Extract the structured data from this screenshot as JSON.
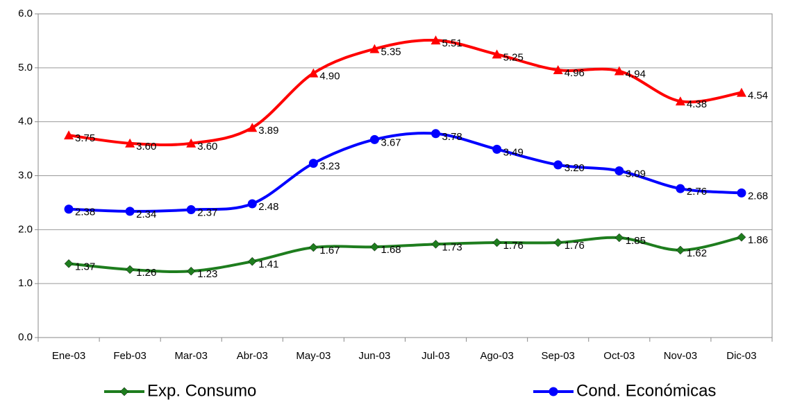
{
  "chart_data": {
    "type": "line",
    "categories": [
      "Ene-03",
      "Feb-03",
      "Mar-03",
      "Abr-03",
      "May-03",
      "Jun-03",
      "Jul-03",
      "Ago-03",
      "Sep-03",
      "Oct-03",
      "Nov-03",
      "Dic-03"
    ],
    "series": [
      {
        "name": "Exp. Consumo",
        "color": "#1e7d1e",
        "marker": "diamond",
        "values": [
          1.37,
          1.26,
          1.23,
          1.41,
          1.67,
          1.68,
          1.73,
          1.76,
          1.76,
          1.85,
          1.62,
          1.86
        ],
        "value_labels": [
          "1.37",
          "1.26",
          "1.23",
          "1.41",
          "1.67",
          "1.68",
          "1.73",
          "1.76",
          "1.76",
          "1.85",
          "1.62",
          "1.86"
        ]
      },
      {
        "name": "Cond. Económicas",
        "color": "#0000ff",
        "marker": "circle",
        "values": [
          2.38,
          2.34,
          2.37,
          2.48,
          3.23,
          3.67,
          3.78,
          3.49,
          3.2,
          3.09,
          2.76,
          2.68
        ],
        "value_labels": [
          "2.38",
          "2.34",
          "2.37",
          "2.48",
          "3.23",
          "3.67",
          "3.78",
          "3.49",
          "3.20",
          "3.09",
          "2.76",
          "2.68"
        ]
      },
      {
        "color": "#ff0000",
        "marker": "triangle",
        "values": [
          3.75,
          3.6,
          3.6,
          3.89,
          4.9,
          5.35,
          5.51,
          5.25,
          4.96,
          4.94,
          4.38,
          4.54
        ],
        "value_labels": [
          "3.75",
          "3.60",
          "3.60",
          "3.89",
          "4.90",
          "5.35",
          "5.51",
          "5.25",
          "4.96",
          "4.94",
          "4.38",
          "4.54"
        ]
      }
    ],
    "ylim": [
      0,
      6
    ],
    "yticks": [
      {
        "value": 0,
        "label": "0.0"
      },
      {
        "value": 1,
        "label": "1.0"
      },
      {
        "value": 2,
        "label": "2.0"
      },
      {
        "value": 3,
        "label": "3.0"
      },
      {
        "value": 4,
        "label": "4.0"
      },
      {
        "value": 5,
        "label": "5.0"
      },
      {
        "value": 6,
        "label": "6.0"
      }
    ],
    "grid": true,
    "smooth": true
  }
}
